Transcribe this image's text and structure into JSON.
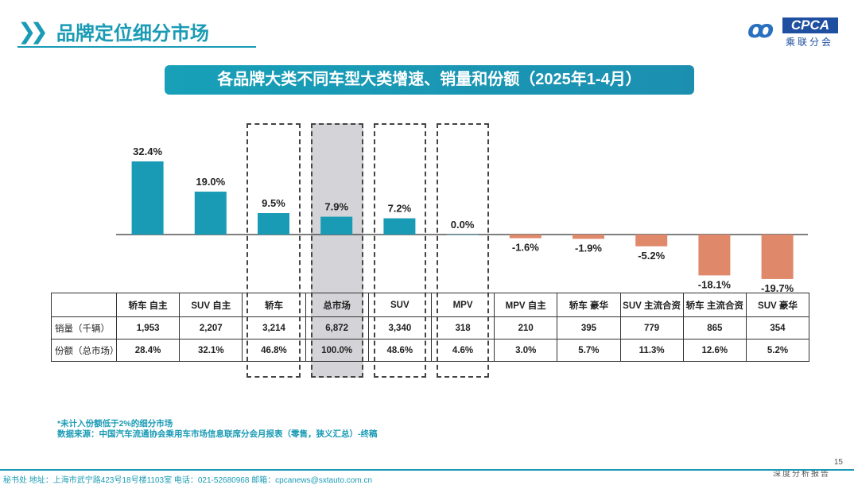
{
  "header": {
    "title": "品牌定位细分市场",
    "logo_text": "CPCA",
    "logo_sub": "乘联分会"
  },
  "banner": "各品牌大类不同车型大类增速、销量和份额（2025年1-4月）",
  "chart_data": {
    "type": "bar",
    "title": "各品牌大类不同车型大类增速、销量和份额（2025年1-4月）",
    "categories": [
      "轿车 自主",
      "SUV 自主",
      "轿车",
      "总市场",
      "SUV",
      "MPV",
      "MPV 自主",
      "轿车 豪华",
      "SUV 主流合资",
      "轿车 主流合资",
      "SUV 豪华"
    ],
    "values": [
      32.4,
      19.0,
      9.5,
      7.9,
      7.2,
      0.0,
      -1.6,
      -1.9,
      -5.2,
      -18.1,
      -19.7
    ],
    "labels": [
      "32.4%",
      "19.0%",
      "9.5%",
      "7.9%",
      "7.2%",
      "0.0%",
      "-1.6%",
      "-1.9%",
      "-5.2%",
      "-18.1%",
      "-19.7%"
    ],
    "unit": "%",
    "positive_color": "#1a9bb5",
    "negative_color": "#e0896a",
    "highlighted": [
      "轿车",
      "总市场",
      "SUV",
      "MPV"
    ]
  },
  "table": {
    "rows": [
      {
        "label": "销量（千辆）",
        "values": [
          "1,953",
          "2,207",
          "3,214",
          "6,872",
          "3,340",
          "318",
          "210",
          "395",
          "779",
          "865",
          "354"
        ]
      },
      {
        "label": "份额（总市场）",
        "values": [
          "28.4%",
          "32.1%",
          "46.8%",
          "100.0%",
          "48.6%",
          "4.6%",
          "3.0%",
          "5.7%",
          "11.3%",
          "12.6%",
          "5.2%"
        ]
      }
    ]
  },
  "notes": [
    "*未计入份额低于2%的细分市场",
    "数据来源：中国汽车流通协会乘用车市场信息联席分会月报表（零售，狭义汇总）-终稿"
  ],
  "footer": {
    "address": "秘书处   地址：上海市武宁路423号18号楼1103室  电话：021-52680968   邮箱：cpcanews@sxtauto.com.cn",
    "report": "深度分析报告",
    "page": "15"
  }
}
